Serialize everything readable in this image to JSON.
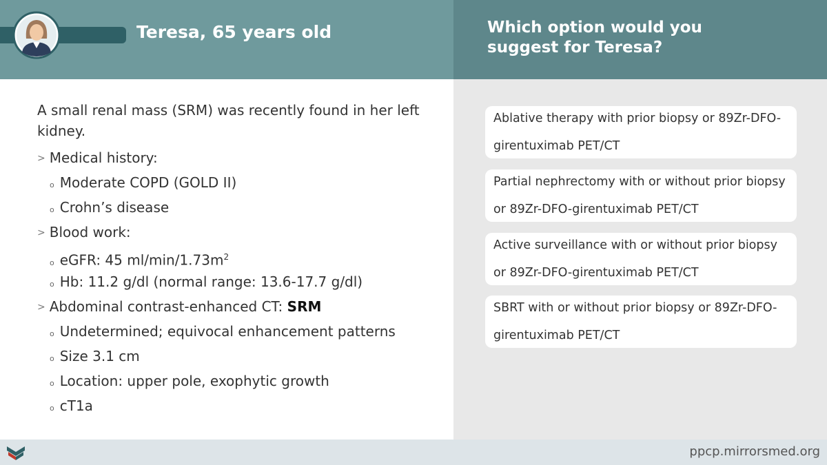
{
  "header": {
    "patient_name": "Teresa, 65 years old",
    "question": "Which option would you suggest for Teresa?"
  },
  "case": {
    "intro": "A small renal mass (SRM) was recently found in her left kidney.",
    "sections": [
      {
        "heading": "Medical history:",
        "items": [
          "Moderate COPD (GOLD II)",
          "Crohn’s disease"
        ]
      },
      {
        "heading": "Blood work:",
        "items": [
          {
            "text": "eGFR: 45 ml/min/1.73m",
            "superscript": "2"
          },
          "Hb: 11.2 g/dl (normal range: 13.6-17.7 g/dl)"
        ]
      },
      {
        "heading": "Abdominal contrast-enhanced CT:",
        "emphasis": "SRM",
        "items": [
          "Undetermined; equivocal enhancement patterns",
          "Size 3.1 cm",
          "Location: upper pole, exophytic growth",
          "cT1a"
        ]
      }
    ]
  },
  "options": [
    "Ablative therapy with prior biopsy or 89Zr-DFO-girentuximab PET/CT",
    "Partial nephrectomy with or without prior biopsy or 89Zr-DFO-girentuximab PET/CT",
    "Active surveillance with or without prior biopsy or 89Zr-DFO-girentuximab PET/CT",
    "SBRT with or without prior biopsy or 89Zr-DFO-girentuximab PET/CT"
  ],
  "footer": {
    "url": "ppcp.mirrorsmed.org"
  }
}
